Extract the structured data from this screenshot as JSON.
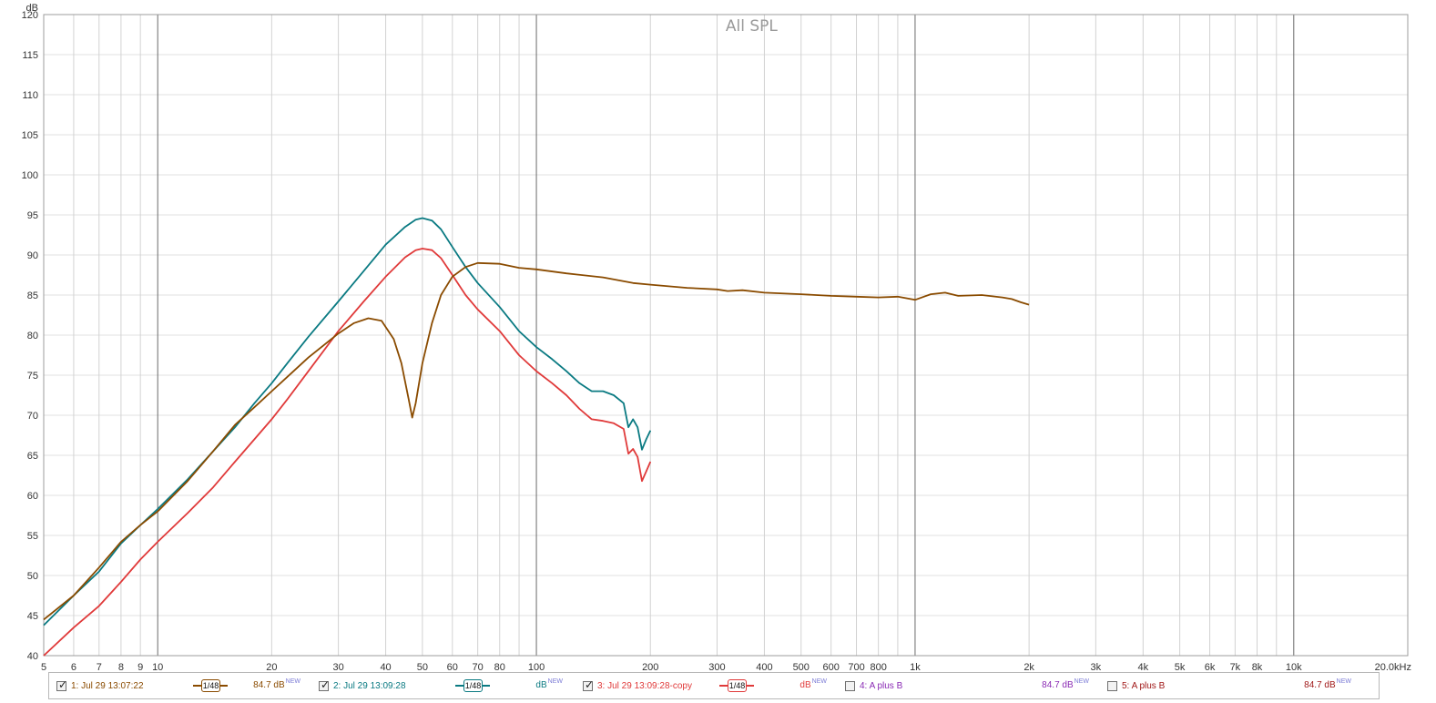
{
  "chart_data": {
    "type": "line",
    "title": "All SPL",
    "ylabel": "dB",
    "xscale": "log",
    "xlim": [
      5,
      20000
    ],
    "ylim": [
      40,
      120
    ],
    "grid": true,
    "y_ticks": [
      "40",
      "45",
      "50",
      "55",
      "60",
      "65",
      "70",
      "75",
      "80",
      "85",
      "90",
      "95",
      "100",
      "105",
      "110",
      "115",
      "120"
    ],
    "x_ticks": [
      {
        "v": 5,
        "label": "5"
      },
      {
        "v": 6,
        "label": "6"
      },
      {
        "v": 7,
        "label": "7"
      },
      {
        "v": 8,
        "label": "8"
      },
      {
        "v": 9,
        "label": "9"
      },
      {
        "v": 10,
        "label": "10"
      },
      {
        "v": 20,
        "label": "20"
      },
      {
        "v": 30,
        "label": "30"
      },
      {
        "v": 40,
        "label": "40"
      },
      {
        "v": 50,
        "label": "50"
      },
      {
        "v": 60,
        "label": "60"
      },
      {
        "v": 70,
        "label": "70"
      },
      {
        "v": 80,
        "label": "80"
      },
      {
        "v": 100,
        "label": "100"
      },
      {
        "v": 200,
        "label": "200"
      },
      {
        "v": 300,
        "label": "300"
      },
      {
        "v": 400,
        "label": "400"
      },
      {
        "v": 500,
        "label": "500"
      },
      {
        "v": 600,
        "label": "600"
      },
      {
        "v": 700,
        "label": "700"
      },
      {
        "v": 800,
        "label": "800"
      },
      {
        "v": 1000,
        "label": "1k"
      },
      {
        "v": 2000,
        "label": "2k"
      },
      {
        "v": 3000,
        "label": "3k"
      },
      {
        "v": 4000,
        "label": "4k"
      },
      {
        "v": 5000,
        "label": "5k"
      },
      {
        "v": 6000,
        "label": "6k"
      },
      {
        "v": 7000,
        "label": "7k"
      },
      {
        "v": 8000,
        "label": "8k"
      },
      {
        "v": 10000,
        "label": "10k"
      },
      {
        "v": 20000,
        "label": "20.0kHz"
      }
    ],
    "series": [
      {
        "name": "2: Jul 29 13:09:28",
        "color": "#0a7a82",
        "points": [
          [
            5,
            43.8
          ],
          [
            6,
            47.5
          ],
          [
            7,
            50.5
          ],
          [
            8,
            54
          ],
          [
            9,
            56.3
          ],
          [
            10,
            58.3
          ],
          [
            12,
            62
          ],
          [
            14,
            65.5
          ],
          [
            16,
            68.5
          ],
          [
            18,
            71.5
          ],
          [
            20,
            74
          ],
          [
            22,
            76.5
          ],
          [
            25,
            79.8
          ],
          [
            30,
            84.2
          ],
          [
            35,
            88
          ],
          [
            40,
            91.3
          ],
          [
            45,
            93.5
          ],
          [
            48,
            94.4
          ],
          [
            50,
            94.6
          ],
          [
            53,
            94.3
          ],
          [
            56,
            93.2
          ],
          [
            60,
            91
          ],
          [
            65,
            88.5
          ],
          [
            70,
            86.5
          ],
          [
            80,
            83.5
          ],
          [
            90,
            80.5
          ],
          [
            100,
            78.5
          ],
          [
            110,
            77
          ],
          [
            120,
            75.5
          ],
          [
            130,
            74
          ],
          [
            140,
            73
          ],
          [
            150,
            73
          ],
          [
            160,
            72.5
          ],
          [
            170,
            71.5
          ],
          [
            175,
            68.5
          ],
          [
            180,
            69.5
          ],
          [
            185,
            68.5
          ],
          [
            190,
            65.7
          ],
          [
            195,
            67
          ],
          [
            200,
            68.1
          ]
        ]
      },
      {
        "name": "3: Jul 29 13:09:28-copy",
        "color": "#e03a3a",
        "points": [
          [
            5,
            40
          ],
          [
            6,
            43.5
          ],
          [
            7,
            46.2
          ],
          [
            8,
            49.2
          ],
          [
            9,
            52
          ],
          [
            10,
            54.2
          ],
          [
            12,
            57.8
          ],
          [
            14,
            61
          ],
          [
            16,
            64.2
          ],
          [
            18,
            67
          ],
          [
            20,
            69.5
          ],
          [
            22,
            72
          ],
          [
            25,
            75.5
          ],
          [
            30,
            80.5
          ],
          [
            35,
            84.2
          ],
          [
            40,
            87.3
          ],
          [
            45,
            89.7
          ],
          [
            48,
            90.6
          ],
          [
            50,
            90.8
          ],
          [
            53,
            90.6
          ],
          [
            56,
            89.6
          ],
          [
            60,
            87.5
          ],
          [
            65,
            85
          ],
          [
            70,
            83.2
          ],
          [
            80,
            80.5
          ],
          [
            90,
            77.5
          ],
          [
            100,
            75.5
          ],
          [
            110,
            74
          ],
          [
            120,
            72.5
          ],
          [
            130,
            70.8
          ],
          [
            140,
            69.5
          ],
          [
            150,
            69.3
          ],
          [
            160,
            69
          ],
          [
            170,
            68.3
          ],
          [
            175,
            65.2
          ],
          [
            180,
            65.8
          ],
          [
            185,
            64.8
          ],
          [
            190,
            61.8
          ],
          [
            195,
            63
          ],
          [
            200,
            64.2
          ]
        ]
      },
      {
        "name": "1: Jul 29 13:07:22",
        "color": "#8a4b00",
        "points": [
          [
            5,
            44.5
          ],
          [
            6,
            47.5
          ],
          [
            7,
            51
          ],
          [
            8,
            54.2
          ],
          [
            9,
            56.3
          ],
          [
            10,
            58
          ],
          [
            12,
            61.8
          ],
          [
            14,
            65.5
          ],
          [
            16,
            68.8
          ],
          [
            18,
            71
          ],
          [
            20,
            73
          ],
          [
            22,
            74.8
          ],
          [
            25,
            77.2
          ],
          [
            30,
            80.2
          ],
          [
            33,
            81.5
          ],
          [
            36,
            82.1
          ],
          [
            39,
            81.8
          ],
          [
            42,
            79.5
          ],
          [
            44,
            76.5
          ],
          [
            46,
            72
          ],
          [
            47,
            69.7
          ],
          [
            48,
            71.5
          ],
          [
            50,
            76.5
          ],
          [
            53,
            81.5
          ],
          [
            56,
            85
          ],
          [
            60,
            87.3
          ],
          [
            65,
            88.5
          ],
          [
            70,
            89
          ],
          [
            80,
            88.9
          ],
          [
            90,
            88.4
          ],
          [
            100,
            88.2
          ],
          [
            120,
            87.7
          ],
          [
            150,
            87.2
          ],
          [
            180,
            86.5
          ],
          [
            200,
            86.3
          ],
          [
            250,
            85.9
          ],
          [
            300,
            85.7
          ],
          [
            320,
            85.5
          ],
          [
            350,
            85.6
          ],
          [
            400,
            85.3
          ],
          [
            500,
            85.1
          ],
          [
            600,
            84.9
          ],
          [
            700,
            84.8
          ],
          [
            800,
            84.7
          ],
          [
            900,
            84.8
          ],
          [
            1000,
            84.4
          ],
          [
            1100,
            85.1
          ],
          [
            1200,
            85.3
          ],
          [
            1300,
            84.9
          ],
          [
            1500,
            85
          ],
          [
            1700,
            84.7
          ],
          [
            1800,
            84.5
          ],
          [
            1900,
            84.1
          ],
          [
            2000,
            83.8
          ]
        ]
      }
    ],
    "legend": [
      {
        "checked": true,
        "label": "1: Jul 29 13:07:22",
        "color": "#8a4b00",
        "smoothing": "1/48",
        "value": "84.7 dB",
        "badge": "NEW",
        "value_color": "#8a4b00"
      },
      {
        "checked": true,
        "label": "2: Jul 29 13:09:28",
        "color": "#0a7a82",
        "smoothing": "1/48",
        "value": "dB",
        "badge": "NEW",
        "value_color": "#0a7a82"
      },
      {
        "checked": true,
        "label": "3: Jul 29 13:09:28-copy",
        "color": "#e03a3a",
        "smoothing": "1/48",
        "value": "dB",
        "badge": "NEW",
        "value_color": "#e03a3a"
      },
      {
        "checked": false,
        "label": "4: A plus B",
        "color": "#8a2ab4",
        "smoothing": "",
        "value": "84.7 dB",
        "badge": "NEW",
        "value_color": "#8a2ab4"
      },
      {
        "checked": false,
        "label": "5: A plus B",
        "color": "#a01818",
        "smoothing": "",
        "value": "84.7 dB",
        "badge": "NEW",
        "value_color": "#a01818"
      }
    ]
  }
}
